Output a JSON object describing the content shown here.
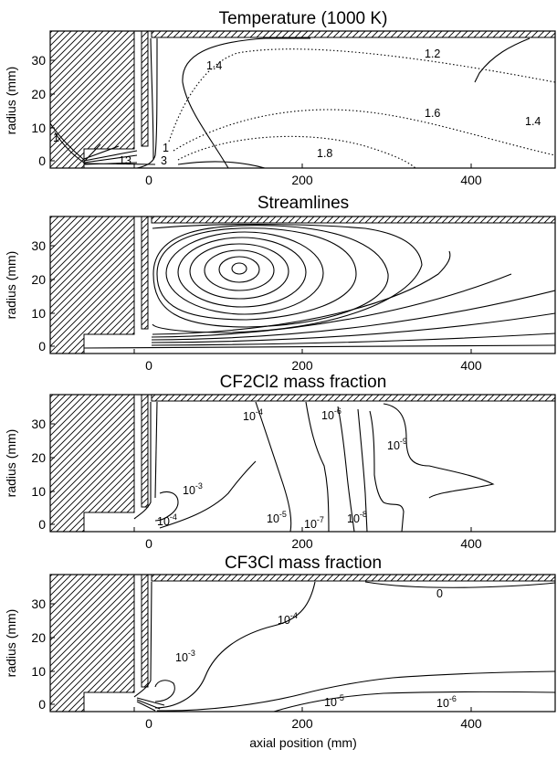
{
  "chart_data": [
    {
      "type": "contour",
      "title": "Temperature (1000 K)",
      "ylabel": "radius (mm)",
      "xlabel": "",
      "xlim": [
        -100,
        500
      ],
      "ylim": [
        -2,
        38
      ],
      "xticks": [
        "0",
        "200",
        "400"
      ],
      "yticks": [
        "0",
        "10",
        "20",
        "30"
      ],
      "contour_labels": [
        {
          "text": "1.2",
          "x": 320,
          "y": 33
        },
        {
          "text": "1.4",
          "x": 75,
          "y": 30
        },
        {
          "text": "1.4",
          "x": 470,
          "y": 12
        },
        {
          "text": "1.6",
          "x": 330,
          "y": 17
        },
        {
          "text": "1.8",
          "x": 195,
          "y": 3
        },
        {
          "text": "1",
          "x": 40,
          "y": 6.8
        },
        {
          "text": "1",
          "x": -93,
          "y": 11
        },
        {
          "text": "3",
          "x": 16,
          "y": 0
        },
        {
          "text": "13",
          "x": -10,
          "y": 0
        }
      ]
    },
    {
      "type": "contour",
      "title": "Streamlines",
      "ylabel": "radius (mm)",
      "xlabel": "",
      "xlim": [
        -100,
        500
      ],
      "ylim": [
        -2,
        38
      ],
      "xticks": [
        "0",
        "200",
        "400"
      ],
      "yticks": [
        "0",
        "10",
        "20",
        "30"
      ],
      "contour_labels": []
    },
    {
      "type": "contour",
      "title": "CF2Cl2 mass fraction",
      "ylabel": "radius (mm)",
      "xlabel": "",
      "xlim": [
        -100,
        500
      ],
      "ylim": [
        -2,
        38
      ],
      "xticks": [
        "0",
        "200",
        "400"
      ],
      "yticks": [
        "0",
        "10",
        "20",
        "30"
      ],
      "contour_labels": [
        {
          "base": "10",
          "exp": "-4",
          "x": 115,
          "y": 30
        },
        {
          "base": "10",
          "exp": "-6",
          "x": 230,
          "y": 30
        },
        {
          "base": "10",
          "exp": "-9",
          "x": 325,
          "y": 19
        },
        {
          "base": "10",
          "exp": "-3",
          "x": 55,
          "y": 12
        },
        {
          "base": "10",
          "exp": "-4",
          "x": 20,
          "y": 2
        },
        {
          "base": "10",
          "exp": "-5",
          "x": 140,
          "y": 3
        },
        {
          "base": "10",
          "exp": "-7",
          "x": 200,
          "y": 0
        },
        {
          "base": "10",
          "exp": "-8",
          "x": 270,
          "y": 1
        }
      ]
    },
    {
      "type": "contour",
      "title": "CF3Cl mass fraction",
      "ylabel": "radius (mm)",
      "xlabel": "axial position (mm)",
      "xlim": [
        -100,
        500
      ],
      "ylim": [
        -2,
        38
      ],
      "xticks": [
        "0",
        "200",
        "400"
      ],
      "yticks": [
        "0",
        "10",
        "20",
        "30"
      ],
      "contour_labels": [
        {
          "text": "0",
          "x": 400,
          "y": 33
        },
        {
          "base": "10",
          "exp": "-4",
          "x": 140,
          "y": 25
        },
        {
          "base": "10",
          "exp": "-3",
          "x": 55,
          "y": 14
        },
        {
          "base": "10",
          "exp": "-5",
          "x": 210,
          "y": 3
        },
        {
          "base": "10",
          "exp": "-6",
          "x": 340,
          "y": 3
        }
      ]
    }
  ]
}
